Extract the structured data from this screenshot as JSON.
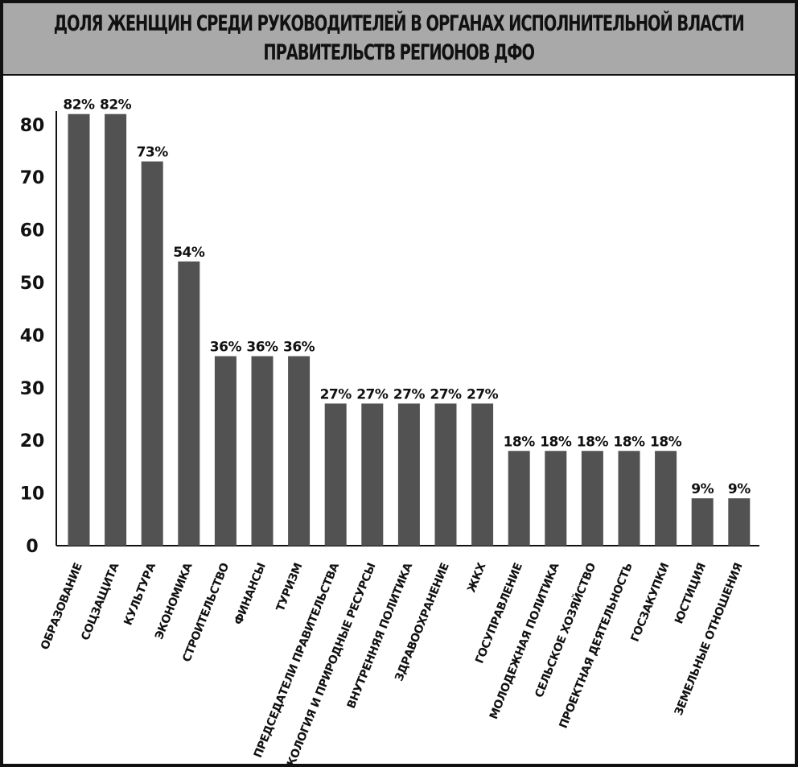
{
  "chart_data": {
    "type": "bar",
    "title_lines": [
      "ДОЛЯ ЖЕНЩИН СРЕДИ РУКОВОДИТЕЛЕЙ В ОРГАНАХ ИСПОЛНИТЕЛЬНОЙ ВЛАСТИ",
      "ПРАВИТЕЛЬСТВ РЕГИОНОВ ДФО"
    ],
    "categories": [
      "ОБРАЗОВАНИЕ",
      "СОЦЗАЩИТА",
      "КУЛЬТУРА",
      "ЭКОНОМИКА",
      "СТРОИТЕЛЬСТВО",
      "ФИНАНСЫ",
      "ТУРИЗМ",
      "ПРЕДСЕДАТЕЛИ ПРАВИТЕЛЬСТВА",
      "ЭКОЛОГИЯ И ПРИРОДНЫЕ РЕСУРСЫ",
      "ВНУТРЕННЯЯ ПОЛИТИКА",
      "ЗДРАВООХРАНЕНИЕ",
      "ЖКХ",
      "ГОСУПРАВЛЕНИЕ",
      "МОЛОДЕЖНАЯ ПОЛИТИКА",
      "СЕЛЬСКОЕ ХОЗЯЙСТВО",
      "ПРОЕКТНАЯ ДЕЯТЕЛЬНОСТЬ",
      "ГОСЗАКУПКИ",
      "ЮСТИЦИЯ",
      "ЗЕМЕЛЬНЫЕ ОТНОШЕНИЯ"
    ],
    "values": [
      82,
      82,
      73,
      54,
      36,
      36,
      36,
      27,
      27,
      27,
      27,
      27,
      18,
      18,
      18,
      18,
      18,
      9,
      9
    ],
    "value_labels": [
      "82%",
      "82%",
      "73%",
      "54%",
      "36%",
      "36%",
      "36%",
      "27%",
      "27%",
      "27%",
      "27%",
      "27%",
      "18%",
      "18%",
      "18%",
      "18%",
      "18%",
      "9%",
      "9%"
    ],
    "y_ticks": [
      "0",
      "10",
      "20",
      "30",
      "40",
      "50",
      "60",
      "70",
      "80"
    ],
    "ylim": [
      0,
      90
    ],
    "grid": false,
    "bar_color": "#525252"
  }
}
